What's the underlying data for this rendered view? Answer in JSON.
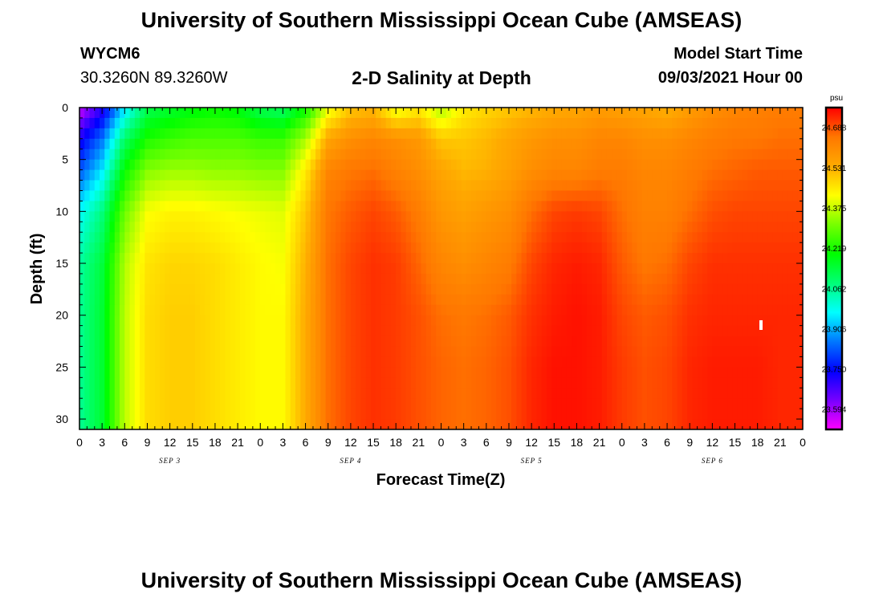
{
  "header": {
    "title": "University of Southern Mississippi Ocean Cube (AMSEAS)",
    "station_id": "WYCM6",
    "station_coords": "30.3260N  89.3260W",
    "chart_title": "2-D Salinity at Depth",
    "model_start_label": "Model Start Time",
    "model_start_value": "09/03/2021 Hour 00"
  },
  "footer": {
    "title": "University of Southern Mississippi Ocean Cube (AMSEAS)"
  },
  "colors": {
    "colormap": [
      "#ff00ff",
      "#7700ff",
      "#0000ff",
      "#0077ff",
      "#00ffff",
      "#00ff77",
      "#00ff00",
      "#77ff00",
      "#ffff00",
      "#ffaa00",
      "#ff7700",
      "#ff0000"
    ],
    "white_marker": "#ffffff"
  },
  "chart_data": {
    "type": "heatmap",
    "title": "2-D Salinity at Depth",
    "xlabel": "Forecast Time(Z)",
    "ylabel": "Depth (ft)",
    "x_ticks": [
      "0",
      "3",
      "6",
      "9",
      "12",
      "15",
      "18",
      "21",
      "0",
      "3",
      "6",
      "9",
      "12",
      "15",
      "18",
      "21",
      "0",
      "3",
      "6",
      "9",
      "12",
      "15",
      "18",
      "21",
      "0",
      "3",
      "6",
      "9",
      "12",
      "15",
      "18",
      "21",
      "0"
    ],
    "day_labels": [
      "SEP 3",
      "SEP 4",
      "SEP 5",
      "SEP 6"
    ],
    "y_ticks": [
      "0",
      "5",
      "10",
      "15",
      "20",
      "25",
      "30"
    ],
    "depth_range_ft": [
      0,
      31
    ],
    "forecast_hours_range": [
      0,
      96
    ],
    "colorbar": {
      "unit": "psu",
      "range": [
        23.516,
        24.766
      ],
      "labels": [
        "24.688",
        "24.531",
        "24.375",
        "24.219",
        "24.062",
        "23.906",
        "23.750",
        "23.594"
      ],
      "label_values": [
        24.688,
        24.531,
        24.375,
        24.219,
        24.062,
        23.906,
        23.75,
        23.594
      ]
    },
    "field": {
      "hours": [
        0,
        3,
        6,
        9,
        12,
        15,
        18,
        21,
        24,
        27,
        30,
        33,
        36,
        39,
        42,
        45,
        48,
        51,
        54,
        57,
        60,
        63,
        66,
        69,
        72,
        75,
        78,
        81,
        84,
        87,
        90,
        93,
        96
      ],
      "depths_ft": [
        0,
        3,
        6,
        10,
        15,
        20,
        25,
        31
      ],
      "values": [
        [
          23.55,
          23.7,
          23.95,
          24.12,
          24.15,
          24.18,
          24.2,
          24.18,
          24.12,
          24.1,
          24.2,
          24.4,
          24.5,
          24.52,
          24.4,
          24.45,
          24.35,
          24.45,
          24.48,
          24.5,
          24.52,
          24.54,
          24.55,
          24.57,
          24.56,
          24.55,
          24.53,
          24.57,
          24.6,
          24.62,
          24.63,
          24.64,
          24.64
        ],
        [
          23.72,
          23.85,
          24.1,
          24.22,
          24.25,
          24.27,
          24.27,
          24.27,
          24.25,
          24.25,
          24.35,
          24.55,
          24.6,
          24.62,
          24.6,
          24.58,
          24.5,
          24.5,
          24.52,
          24.55,
          24.58,
          24.6,
          24.6,
          24.62,
          24.62,
          24.6,
          24.6,
          24.62,
          24.64,
          24.65,
          24.65,
          24.66,
          24.66
        ],
        [
          23.82,
          23.95,
          24.2,
          24.32,
          24.34,
          24.34,
          24.33,
          24.33,
          24.32,
          24.32,
          24.45,
          24.62,
          24.65,
          24.66,
          24.63,
          24.6,
          24.55,
          24.52,
          24.53,
          24.56,
          24.6,
          24.62,
          24.62,
          24.64,
          24.64,
          24.62,
          24.62,
          24.64,
          24.66,
          24.67,
          24.68,
          24.68,
          24.68
        ],
        [
          23.97,
          24.08,
          24.3,
          24.42,
          24.44,
          24.44,
          24.43,
          24.42,
          24.41,
          24.4,
          24.5,
          24.65,
          24.68,
          24.7,
          24.68,
          24.64,
          24.58,
          24.56,
          24.58,
          24.6,
          24.66,
          24.7,
          24.71,
          24.7,
          24.66,
          24.63,
          24.63,
          24.66,
          24.69,
          24.7,
          24.7,
          24.7,
          24.7
        ],
        [
          24.05,
          24.14,
          24.36,
          24.46,
          24.48,
          24.48,
          24.47,
          24.45,
          24.43,
          24.42,
          24.53,
          24.66,
          24.7,
          24.72,
          24.71,
          24.67,
          24.62,
          24.6,
          24.62,
          24.64,
          24.7,
          24.73,
          24.74,
          24.73,
          24.68,
          24.65,
          24.66,
          24.7,
          24.72,
          24.72,
          24.72,
          24.72,
          24.72
        ],
        [
          24.06,
          24.15,
          24.37,
          24.47,
          24.49,
          24.49,
          24.47,
          24.45,
          24.43,
          24.43,
          24.54,
          24.66,
          24.7,
          24.72,
          24.71,
          24.69,
          24.66,
          24.65,
          24.66,
          24.68,
          24.72,
          24.74,
          24.75,
          24.74,
          24.7,
          24.68,
          24.69,
          24.72,
          24.73,
          24.73,
          24.73,
          24.73,
          24.73
        ],
        [
          24.06,
          24.15,
          24.37,
          24.47,
          24.49,
          24.49,
          24.47,
          24.45,
          24.43,
          24.43,
          24.54,
          24.66,
          24.7,
          24.72,
          24.71,
          24.69,
          24.67,
          24.66,
          24.67,
          24.69,
          24.73,
          24.75,
          24.75,
          24.74,
          24.71,
          24.69,
          24.7,
          24.73,
          24.74,
          24.74,
          24.74,
          24.73,
          24.73
        ],
        [
          24.06,
          24.15,
          24.37,
          24.47,
          24.49,
          24.49,
          24.47,
          24.45,
          24.43,
          24.43,
          24.54,
          24.66,
          24.7,
          24.72,
          24.71,
          24.69,
          24.67,
          24.66,
          24.67,
          24.69,
          24.73,
          24.75,
          24.75,
          24.74,
          24.71,
          24.69,
          24.7,
          24.73,
          24.74,
          24.74,
          24.74,
          24.73,
          24.73
        ]
      ]
    }
  }
}
